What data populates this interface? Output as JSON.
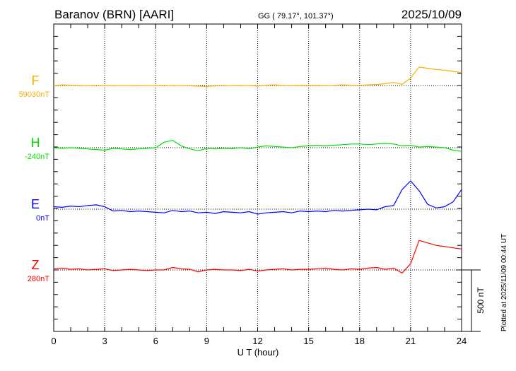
{
  "chart_data": {
    "type": "line",
    "title": "Baranov (BRN)  [AARI]",
    "coords": "GG ( 79.17°, 101.37°)",
    "date": "2025/10/09",
    "xlabel": "U T (hour)",
    "xlim": [
      0,
      24
    ],
    "x_ticks": [
      "0",
      "3",
      "6",
      "9",
      "12",
      "15",
      "18",
      "21",
      "24"
    ],
    "scale_label": "500 nT",
    "scale_nT": 500,
    "plotted_note": "Plotted at 2025/11/09 00:44 UT",
    "x_step_hours": 0.5,
    "series": [
      {
        "name": "F",
        "baseline_label": "59030nT",
        "color": "#f7b000",
        "values": [
          0,
          5,
          3,
          2,
          0,
          -3,
          0,
          2,
          0,
          0,
          -2,
          0,
          0,
          -3,
          2,
          0,
          -2,
          -5,
          -8,
          -3,
          -2,
          0,
          2,
          0,
          -5,
          3,
          5,
          2,
          0,
          3,
          2,
          3,
          0,
          2,
          5,
          3,
          2,
          5,
          8,
          15,
          25,
          10,
          60,
          150,
          140,
          130,
          125,
          115,
          105
        ]
      },
      {
        "name": "H",
        "baseline_label": "-240nT",
        "color": "#00e000",
        "values": [
          0,
          -5,
          0,
          -5,
          -10,
          -15,
          -20,
          -5,
          -10,
          -15,
          -10,
          -5,
          0,
          45,
          60,
          15,
          -10,
          -25,
          -5,
          -10,
          -5,
          -8,
          0,
          -10,
          5,
          15,
          10,
          5,
          0,
          10,
          15,
          20,
          15,
          20,
          25,
          30,
          30,
          25,
          30,
          35,
          30,
          15,
          20,
          5,
          10,
          5,
          0,
          -20,
          -30
        ]
      },
      {
        "name": "E",
        "baseline_label": "0nT",
        "color": "#0000ff",
        "values": [
          20,
          15,
          25,
          20,
          30,
          35,
          20,
          -15,
          -10,
          -20,
          -15,
          -20,
          -25,
          -30,
          -10,
          -20,
          -15,
          -30,
          -25,
          -35,
          -20,
          -25,
          -30,
          -20,
          -40,
          -30,
          -25,
          -20,
          -30,
          -15,
          -20,
          -15,
          -20,
          -10,
          -15,
          -10,
          -5,
          0,
          -5,
          20,
          30,
          160,
          230,
          150,
          40,
          10,
          20,
          60,
          160
        ]
      },
      {
        "name": "Z",
        "baseline_label": "280nT",
        "color": "#ff0000",
        "values": [
          10,
          15,
          5,
          10,
          0,
          5,
          10,
          -5,
          0,
          5,
          0,
          -5,
          0,
          0,
          20,
          10,
          5,
          -15,
          0,
          5,
          0,
          0,
          -5,
          5,
          -10,
          0,
          5,
          10,
          0,
          5,
          5,
          10,
          15,
          5,
          0,
          10,
          5,
          15,
          20,
          5,
          15,
          -25,
          50,
          240,
          220,
          200,
          190,
          180,
          170
        ]
      }
    ]
  }
}
